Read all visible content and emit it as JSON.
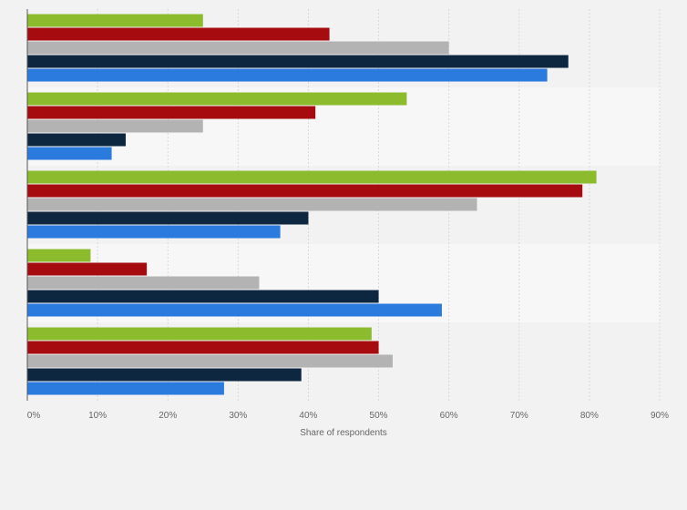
{
  "chart_data": {
    "type": "bar",
    "orientation": "horizontal",
    "title": "",
    "xlabel": "Share of respondents",
    "ylabel": "",
    "xlim": [
      0,
      90
    ],
    "x_ticks": [
      0,
      10,
      20,
      30,
      40,
      50,
      60,
      70,
      80,
      90
    ],
    "tick_suffix": "%",
    "grid": true,
    "legend": "none",
    "categories": [
      "",
      "",
      "",
      "",
      ""
    ],
    "series": [
      {
        "color": "#8dbb2e",
        "values": [
          25,
          54,
          81,
          9,
          49
        ]
      },
      {
        "color": "#a60b0f",
        "values": [
          43,
          41,
          79,
          17,
          50
        ]
      },
      {
        "color": "#b3b3b3",
        "values": [
          60,
          25,
          64,
          33,
          52
        ]
      },
      {
        "color": "#0e2740",
        "values": [
          77,
          14,
          40,
          50,
          39
        ]
      },
      {
        "color": "#2b7bdf",
        "values": [
          74,
          12,
          36,
          59,
          28
        ]
      }
    ],
    "band_colors": [
      "#f2f2f2",
      "#f7f7f7"
    ]
  }
}
